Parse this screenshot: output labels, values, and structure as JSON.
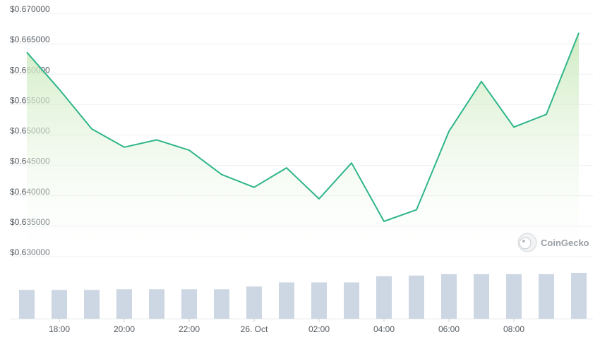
{
  "chart_data": {
    "type": "line",
    "title": "",
    "xlabel": "",
    "ylabel": "",
    "y_ticks": [
      "$0.670000",
      "$0.665000",
      "$0.660000",
      "$0.655000",
      "$0.650000",
      "$0.645000",
      "$0.640000",
      "$0.635000",
      "$0.630000"
    ],
    "x_ticks": [
      "18:00",
      "20:00",
      "22:00",
      "26. Oct",
      "02:00",
      "04:00",
      "06:00",
      "08:00"
    ],
    "ylim": [
      0.63,
      0.67
    ],
    "grid": true,
    "price_series": {
      "values": [
        0.6636,
        0.6575,
        0.651,
        0.648,
        0.6492,
        0.6475,
        0.6435,
        0.6414,
        0.6446,
        0.6395,
        0.6454,
        0.6358,
        0.6377,
        0.6506,
        0.6588,
        0.6513,
        0.6534,
        0.6668
      ]
    },
    "volume_series": {
      "values": [
        42,
        42,
        42,
        43,
        43,
        43,
        43,
        47,
        53,
        53,
        53,
        62,
        63,
        65,
        65,
        65,
        65,
        67
      ]
    },
    "colors": {
      "line": "#2fb58a",
      "area": "#d8f0cf",
      "bars": "#cdd6e3"
    }
  },
  "branding": {
    "name": "CoinGecko",
    "icon": "gecko-logo-icon"
  }
}
